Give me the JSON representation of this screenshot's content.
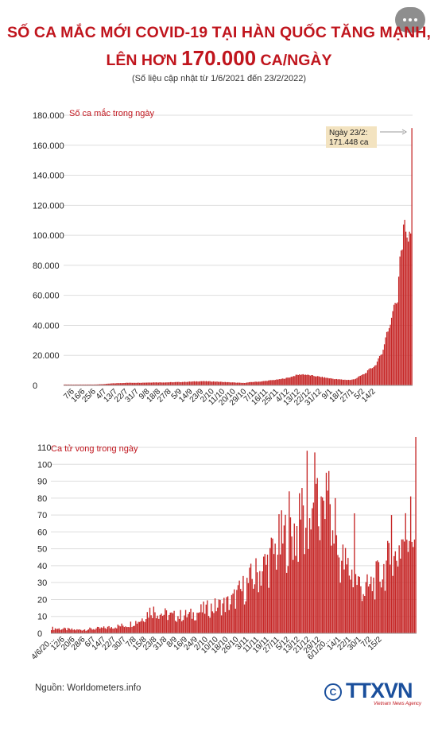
{
  "header": {
    "title_line1": "SỐ CA MẮC MỚI COVID-19 TẠI HÀN QUỐC TĂNG MẠNH,",
    "title_line2_pre": "LÊN HƠN ",
    "title_line2_big": "170.000",
    "title_line2_post": " CA/NGÀY",
    "subtitle": "(Số liệu cập nhật từ 1/6/2021 đến 23/2/2022)"
  },
  "footer": {
    "source": "Nguồn: Worldometers.info",
    "logo_text": "TTXVN",
    "logo_sub": "Vietnam News Agency"
  },
  "colors": {
    "title": "#c0151d",
    "bar": "#c62828",
    "annotation_bg": "#f3e3c0",
    "grid": "#dddddd"
  },
  "chart_data": [
    {
      "type": "bar",
      "series_label": "Số ca mắc trong ngày",
      "ylim": [
        0,
        180000
      ],
      "yticks": [
        0,
        20000,
        40000,
        60000,
        80000,
        100000,
        120000,
        140000,
        160000,
        180000
      ],
      "ytick_labels": [
        "0",
        "20.000",
        "40.000",
        "60.000",
        "80.000",
        "100.000",
        "120.000",
        "140.000",
        "160.000",
        "180.000"
      ],
      "start_date": "2021-06-01",
      "xtick_labels": [
        "7/6",
        "16/6",
        "25/6",
        "4/7",
        "13/7",
        "22/7",
        "31/7",
        "9/8",
        "18/8",
        "27/8",
        "5/9",
        "14/9",
        "23/9",
        "2/10",
        "11/10",
        "20/10",
        "29/10",
        "7/11",
        "16/11",
        "25/11",
        "4/12",
        "13/12",
        "22/12",
        "31/12",
        "9/1",
        "18/1",
        "27/1",
        "5/2",
        "14/2"
      ],
      "annotation": {
        "line1": "Ngày 23/2:",
        "line2": "171.448 ca",
        "value": 171448
      },
      "anchors": [
        [
          0,
          600
        ],
        [
          10,
          550
        ],
        [
          25,
          600
        ],
        [
          32,
          800
        ],
        [
          40,
          1300
        ],
        [
          52,
          1700
        ],
        [
          65,
          1800
        ],
        [
          75,
          2000
        ],
        [
          85,
          2000
        ],
        [
          100,
          2300
        ],
        [
          115,
          2800
        ],
        [
          125,
          2600
        ],
        [
          140,
          2000
        ],
        [
          150,
          1600
        ],
        [
          158,
          2300
        ],
        [
          165,
          2600
        ],
        [
          172,
          3300
        ],
        [
          180,
          4000
        ],
        [
          188,
          5200
        ],
        [
          195,
          7000
        ],
        [
          200,
          7400
        ],
        [
          205,
          6800
        ],
        [
          212,
          6000
        ],
        [
          220,
          5000
        ],
        [
          228,
          4100
        ],
        [
          234,
          3800
        ],
        [
          240,
          3600
        ],
        [
          244,
          4500
        ],
        [
          248,
          6400
        ],
        [
          252,
          8000
        ],
        [
          256,
          11000
        ],
        [
          260,
          13000
        ],
        [
          263,
          17000
        ],
        [
          266,
          22000
        ],
        [
          268,
          27000
        ],
        [
          270,
          36000
        ],
        [
          272,
          38000
        ],
        [
          274,
          45000
        ],
        [
          276,
          54000
        ],
        [
          277,
          53000
        ],
        [
          279,
          57000
        ],
        [
          281,
          90000
        ],
        [
          283,
          93000
        ],
        [
          284,
          109000
        ],
        [
          286,
          102000
        ],
        [
          288,
          99000
        ],
        [
          289,
          104000
        ],
        [
          290,
          99000
        ]
      ],
      "last_value": 171448
    },
    {
      "type": "bar",
      "series_label": "Ca tử vong trong ngày",
      "ylim": [
        0,
        110
      ],
      "yticks": [
        0,
        10,
        20,
        30,
        40,
        50,
        60,
        70,
        80,
        90,
        100,
        110
      ],
      "ytick_labels": [
        "0",
        "10",
        "20",
        "30",
        "40",
        "50",
        "60",
        "70",
        "80",
        "90",
        "100",
        "110"
      ],
      "start_date": "2021-06-04",
      "xtick_labels": [
        "4/6/20...",
        "12/6",
        "20/6",
        "28/6",
        "6/7",
        "14/7",
        "22/7",
        "30/7",
        "7/8",
        "15/8",
        "23/8",
        "31/8",
        "8/9",
        "16/9",
        "24/9",
        "2/10",
        "10/10",
        "18/10",
        "26/10",
        "3/11",
        "11/11",
        "19/11",
        "27/11",
        "5/12",
        "13/12",
        "21/12",
        "29/12",
        "6/1/20...",
        "14/1",
        "22/1",
        "30/1",
        "7/2",
        "15/2"
      ],
      "anchors": [
        [
          0,
          3
        ],
        [
          20,
          2
        ],
        [
          40,
          3
        ],
        [
          60,
          5
        ],
        [
          70,
          8
        ],
        [
          78,
          14
        ],
        [
          85,
          12
        ],
        [
          95,
          10
        ],
        [
          110,
          11
        ],
        [
          120,
          14
        ],
        [
          130,
          16
        ],
        [
          140,
          18
        ],
        [
          150,
          26
        ],
        [
          160,
          34
        ],
        [
          170,
          42
        ],
        [
          178,
          52
        ],
        [
          185,
          58
        ],
        [
          190,
          60
        ],
        [
          197,
          62
        ],
        [
          205,
          70
        ],
        [
          212,
          65
        ],
        [
          218,
          60
        ],
        [
          225,
          45
        ],
        [
          232,
          38
        ],
        [
          240,
          30
        ],
        [
          245,
          25
        ],
        [
          250,
          28
        ],
        [
          255,
          32
        ],
        [
          262,
          40
        ],
        [
          268,
          42
        ],
        [
          274,
          55
        ],
        [
          280,
          60
        ],
        [
          284,
          62
        ],
        [
          285,
          97
        ]
      ],
      "spikes": [
        [
          186,
          84
        ],
        [
          196,
          86
        ],
        [
          200,
          108
        ],
        [
          204,
          74
        ],
        [
          206,
          107
        ],
        [
          211,
          81
        ],
        [
          215,
          95
        ],
        [
          217,
          96
        ],
        [
          222,
          80
        ],
        [
          237,
          71
        ],
        [
          266,
          70
        ],
        [
          281,
          81
        ]
      ]
    }
  ]
}
